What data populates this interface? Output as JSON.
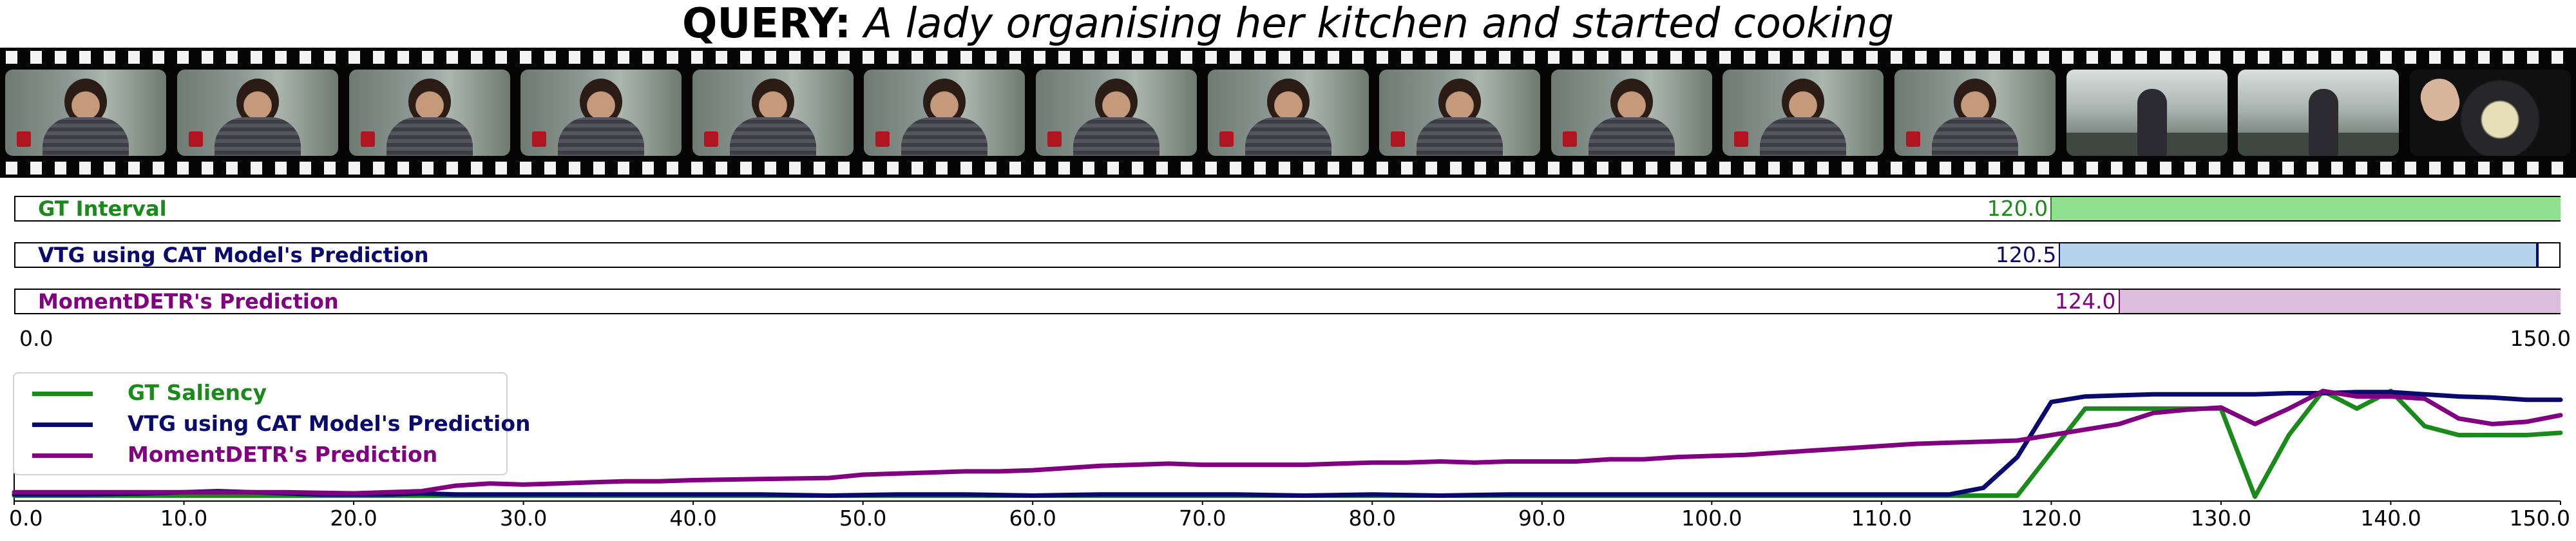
{
  "header": {
    "query_label": "QUERY:",
    "query_text": " A lady organising her kitchen and started cooking"
  },
  "filmstrip": {
    "frames": [
      "person",
      "person",
      "person",
      "person",
      "person",
      "person",
      "person",
      "person",
      "person",
      "person",
      "person",
      "person",
      "kitchen",
      "kitchen",
      "cooking"
    ]
  },
  "intervals": {
    "axis_min_label": "0.0",
    "axis_max_label": "150.0",
    "range": [
      0,
      150
    ],
    "bars": [
      {
        "label": "GT Interval",
        "start": 120.0,
        "end": 150.0,
        "start_label": "120.0",
        "label_color": "#1a8a1a",
        "fill_color": "#8fe08f",
        "edge_color": "#1a8a1a",
        "end_marker": false
      },
      {
        "label": "VTG using CAT Model's Prediction",
        "start": 120.5,
        "end": 148.7,
        "start_label": "120.5",
        "label_color": "#0a0a6e",
        "fill_color": "#b5d4ec",
        "edge_color": "#0a0a6e",
        "end_marker": true
      },
      {
        "label": "MomentDETR's Prediction",
        "start": 124.0,
        "end": 150.0,
        "start_label": "124.0",
        "label_color": "#800080",
        "fill_color": "#dcbedc",
        "edge_color": "#800080",
        "end_marker": false
      }
    ]
  },
  "chart_data": {
    "type": "line",
    "xlim": [
      0,
      150
    ],
    "ylim": [
      0,
      1.1
    ],
    "x_tick_labels": [
      "0.0",
      "10.0",
      "20.0",
      "30.0",
      "40.0",
      "50.0",
      "60.0",
      "70.0",
      "80.0",
      "90.0",
      "100.0",
      "110.0",
      "120.0",
      "130.0",
      "140.0",
      "150.0"
    ],
    "legend_position": "upper-left",
    "series": [
      {
        "name": "GT Saliency",
        "color": "#1a8a1a",
        "points": [
          [
            0,
            0.05
          ],
          [
            20,
            0.05
          ],
          [
            118,
            0.05
          ],
          [
            122,
            0.84
          ],
          [
            130,
            0.84
          ],
          [
            132,
            0.04
          ],
          [
            134,
            0.6
          ],
          [
            136,
            1.0
          ],
          [
            138,
            0.84
          ],
          [
            140,
            1.0
          ],
          [
            142,
            0.68
          ],
          [
            144,
            0.6
          ],
          [
            146,
            0.6
          ],
          [
            148,
            0.6
          ],
          [
            150,
            0.62
          ]
        ]
      },
      {
        "name": "VTG using CAT Model's Prediction",
        "color": "#0a0a6e",
        "points": [
          [
            0,
            0.06
          ],
          [
            4,
            0.06
          ],
          [
            8,
            0.07
          ],
          [
            10,
            0.08
          ],
          [
            12,
            0.09
          ],
          [
            14,
            0.08
          ],
          [
            16,
            0.07
          ],
          [
            18,
            0.06
          ],
          [
            20,
            0.06
          ],
          [
            22,
            0.06
          ],
          [
            24,
            0.07
          ],
          [
            26,
            0.06
          ],
          [
            28,
            0.06
          ],
          [
            30,
            0.06
          ],
          [
            32,
            0.06
          ],
          [
            34,
            0.06
          ],
          [
            36,
            0.06
          ],
          [
            40,
            0.06
          ],
          [
            44,
            0.06
          ],
          [
            48,
            0.05
          ],
          [
            52,
            0.06
          ],
          [
            56,
            0.06
          ],
          [
            60,
            0.05
          ],
          [
            64,
            0.06
          ],
          [
            68,
            0.06
          ],
          [
            72,
            0.06
          ],
          [
            76,
            0.05
          ],
          [
            80,
            0.06
          ],
          [
            84,
            0.05
          ],
          [
            88,
            0.06
          ],
          [
            92,
            0.06
          ],
          [
            96,
            0.06
          ],
          [
            100,
            0.06
          ],
          [
            104,
            0.06
          ],
          [
            108,
            0.06
          ],
          [
            112,
            0.06
          ],
          [
            114,
            0.06
          ],
          [
            116,
            0.12
          ],
          [
            118,
            0.4
          ],
          [
            120,
            0.9
          ],
          [
            122,
            0.95
          ],
          [
            124,
            0.96
          ],
          [
            126,
            0.97
          ],
          [
            128,
            0.97
          ],
          [
            130,
            0.97
          ],
          [
            132,
            0.97
          ],
          [
            134,
            0.98
          ],
          [
            136,
            0.98
          ],
          [
            138,
            0.99
          ],
          [
            140,
            0.99
          ],
          [
            142,
            0.97
          ],
          [
            144,
            0.95
          ],
          [
            146,
            0.94
          ],
          [
            148,
            0.92
          ],
          [
            150,
            0.92
          ]
        ]
      },
      {
        "name": "MomentDETR's Prediction",
        "color": "#800080",
        "points": [
          [
            0,
            0.08
          ],
          [
            4,
            0.08
          ],
          [
            8,
            0.08
          ],
          [
            12,
            0.08
          ],
          [
            16,
            0.08
          ],
          [
            20,
            0.07
          ],
          [
            22,
            0.08
          ],
          [
            24,
            0.09
          ],
          [
            26,
            0.14
          ],
          [
            28,
            0.16
          ],
          [
            30,
            0.15
          ],
          [
            32,
            0.16
          ],
          [
            34,
            0.17
          ],
          [
            36,
            0.18
          ],
          [
            38,
            0.18
          ],
          [
            40,
            0.19
          ],
          [
            44,
            0.2
          ],
          [
            48,
            0.21
          ],
          [
            50,
            0.24
          ],
          [
            52,
            0.25
          ],
          [
            54,
            0.26
          ],
          [
            56,
            0.27
          ],
          [
            58,
            0.27
          ],
          [
            60,
            0.28
          ],
          [
            62,
            0.3
          ],
          [
            64,
            0.32
          ],
          [
            66,
            0.33
          ],
          [
            68,
            0.34
          ],
          [
            70,
            0.33
          ],
          [
            72,
            0.33
          ],
          [
            74,
            0.33
          ],
          [
            76,
            0.33
          ],
          [
            78,
            0.34
          ],
          [
            80,
            0.35
          ],
          [
            82,
            0.35
          ],
          [
            84,
            0.36
          ],
          [
            86,
            0.35
          ],
          [
            88,
            0.36
          ],
          [
            90,
            0.36
          ],
          [
            92,
            0.36
          ],
          [
            94,
            0.38
          ],
          [
            96,
            0.38
          ],
          [
            98,
            0.4
          ],
          [
            100,
            0.41
          ],
          [
            102,
            0.42
          ],
          [
            104,
            0.44
          ],
          [
            106,
            0.46
          ],
          [
            108,
            0.48
          ],
          [
            110,
            0.5
          ],
          [
            112,
            0.52
          ],
          [
            114,
            0.53
          ],
          [
            116,
            0.54
          ],
          [
            118,
            0.55
          ],
          [
            120,
            0.6
          ],
          [
            122,
            0.65
          ],
          [
            124,
            0.7
          ],
          [
            126,
            0.8
          ],
          [
            128,
            0.83
          ],
          [
            130,
            0.85
          ],
          [
            132,
            0.7
          ],
          [
            134,
            0.84
          ],
          [
            136,
            1.0
          ],
          [
            138,
            0.95
          ],
          [
            140,
            0.95
          ],
          [
            142,
            0.93
          ],
          [
            144,
            0.75
          ],
          [
            146,
            0.7
          ],
          [
            148,
            0.72
          ],
          [
            150,
            0.78
          ]
        ]
      }
    ]
  }
}
